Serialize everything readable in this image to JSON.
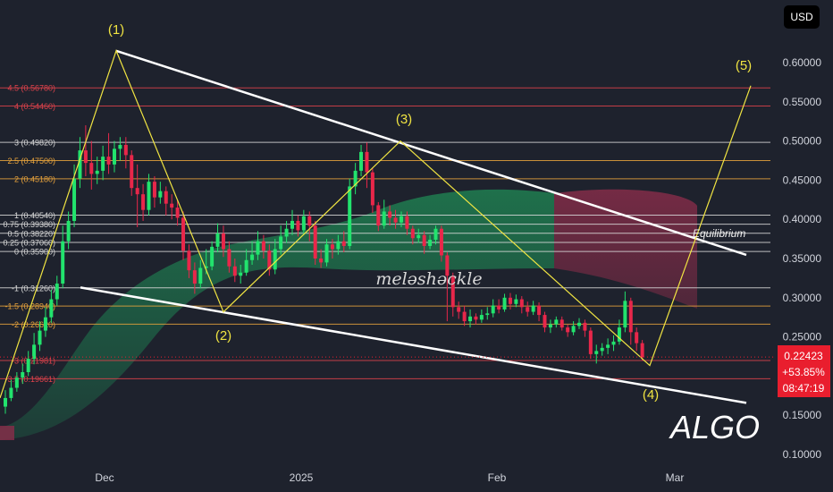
{
  "currency_button": "USD",
  "symbol": "ALGO",
  "watermark": "meləshəckle",
  "chart_data": {
    "type": "candlestick",
    "title": "",
    "price_axis": {
      "min": 0.1,
      "max": 0.64,
      "ticks": [
        "0.60000",
        "0.55000",
        "0.50000",
        "0.45000",
        "0.40000",
        "0.35000",
        "0.30000",
        "0.25000",
        "0.20000",
        "0.15000",
        "0.10000"
      ],
      "tick_values": [
        0.6,
        0.55,
        0.5,
        0.45,
        0.4,
        0.35,
        0.3,
        0.25,
        0.2,
        0.15,
        0.1
      ]
    },
    "time_axis": {
      "labels": [
        "Dec",
        "2025",
        "Feb",
        "Mar"
      ]
    },
    "last_price": {
      "price": "0.22423",
      "change": "+53.85%",
      "countdown": "08:47:19",
      "value": 0.22423
    },
    "fib_levels": [
      {
        "label": "4.5 (0.56780)",
        "value": 0.5678,
        "color": "#e0424b"
      },
      {
        "label": "4 (0.54460)",
        "value": 0.5446,
        "color": "#e0424b"
      },
      {
        "label": "3 (0.49820)",
        "value": 0.4982,
        "color": "#d9d9d9"
      },
      {
        "label": "2.5 (0.47500)",
        "value": 0.475,
        "color": "#e8a33c"
      },
      {
        "label": "2 (0.45180)",
        "value": 0.4518,
        "color": "#e8a33c"
      },
      {
        "label": "1 (0.40540)",
        "value": 0.4054,
        "color": "#d9d9d9"
      },
      {
        "label": "0.75 (0.39380)",
        "value": 0.3938,
        "color": "#d9d9d9"
      },
      {
        "label": "0.5 (0.38220)",
        "value": 0.3822,
        "color": "#d9d9d9"
      },
      {
        "label": "0.25 (0.37060)",
        "value": 0.3706,
        "color": "#d9d9d9"
      },
      {
        "label": "0 (0.35900)",
        "value": 0.359,
        "color": "#d9d9d9"
      },
      {
        "label": "-1 (0.31260)",
        "value": 0.3126,
        "color": "#d9d9d9"
      },
      {
        "label": "-1.5 (0.28940)",
        "value": 0.2894,
        "color": "#e8a33c"
      },
      {
        "label": "-2 (0.26620)",
        "value": 0.2662,
        "color": "#e8a33c"
      },
      {
        "label": "-3 (0.21981)",
        "value": 0.2198,
        "color": "#e0424b"
      },
      {
        "label": "-3.5 (0.19661)",
        "value": 0.1966,
        "color": "#e0424b"
      }
    ],
    "waves": [
      {
        "label": "(1)",
        "value": 0.6151
      },
      {
        "label": "(2)",
        "value": 0.2818
      },
      {
        "label": "(3)",
        "value": 0.4999
      },
      {
        "label": "(4)",
        "value": 0.2135
      },
      {
        "label": "(5)",
        "value": 0.5705
      }
    ],
    "equilibrium_label": "Equilibrium",
    "candles": [
      [
        0.161,
        0.172,
        0.182,
        0.152
      ],
      [
        0.172,
        0.185,
        0.195,
        0.168
      ],
      [
        0.185,
        0.198,
        0.205,
        0.18
      ],
      [
        0.198,
        0.205,
        0.216,
        0.19
      ],
      [
        0.205,
        0.222,
        0.232,
        0.2
      ],
      [
        0.222,
        0.24,
        0.255,
        0.215
      ],
      [
        0.24,
        0.258,
        0.27,
        0.232
      ],
      [
        0.258,
        0.275,
        0.288,
        0.25
      ],
      [
        0.275,
        0.298,
        0.31,
        0.268
      ],
      [
        0.298,
        0.318,
        0.328,
        0.29
      ],
      [
        0.318,
        0.372,
        0.392,
        0.312
      ],
      [
        0.372,
        0.398,
        0.41,
        0.362
      ],
      [
        0.398,
        0.452,
        0.47,
        0.39
      ],
      [
        0.452,
        0.488,
        0.505,
        0.44
      ],
      [
        0.488,
        0.472,
        0.52,
        0.455
      ],
      [
        0.472,
        0.458,
        0.5,
        0.438
      ],
      [
        0.458,
        0.462,
        0.48,
        0.445
      ],
      [
        0.462,
        0.48,
        0.494,
        0.45
      ],
      [
        0.48,
        0.47,
        0.51,
        0.458
      ],
      [
        0.47,
        0.49,
        0.5,
        0.46
      ],
      [
        0.49,
        0.495,
        0.505,
        0.475
      ],
      [
        0.495,
        0.482,
        0.505,
        0.465
      ],
      [
        0.482,
        0.44,
        0.488,
        0.43
      ],
      [
        0.44,
        0.432,
        0.47,
        0.39
      ],
      [
        0.432,
        0.412,
        0.445,
        0.398
      ],
      [
        0.412,
        0.448,
        0.458,
        0.405
      ],
      [
        0.448,
        0.428,
        0.455,
        0.415
      ],
      [
        0.428,
        0.436,
        0.448,
        0.42
      ],
      [
        0.436,
        0.42,
        0.442,
        0.405
      ],
      [
        0.42,
        0.415,
        0.432,
        0.4
      ],
      [
        0.415,
        0.402,
        0.425,
        0.392
      ],
      [
        0.402,
        0.36,
        0.41,
        0.348
      ],
      [
        0.36,
        0.335,
        0.368,
        0.325
      ],
      [
        0.335,
        0.318,
        0.345,
        0.305
      ],
      [
        0.318,
        0.338,
        0.348,
        0.312
      ],
      [
        0.338,
        0.34,
        0.362,
        0.33
      ],
      [
        0.34,
        0.365,
        0.372,
        0.335
      ],
      [
        0.365,
        0.382,
        0.395,
        0.358
      ],
      [
        0.382,
        0.362,
        0.392,
        0.352
      ],
      [
        0.362,
        0.34,
        0.372,
        0.332
      ],
      [
        0.34,
        0.328,
        0.35,
        0.32
      ],
      [
        0.328,
        0.332,
        0.342,
        0.318
      ],
      [
        0.332,
        0.348,
        0.362,
        0.328
      ],
      [
        0.348,
        0.355,
        0.372,
        0.342
      ],
      [
        0.355,
        0.372,
        0.385,
        0.348
      ],
      [
        0.372,
        0.36,
        0.38,
        0.35
      ],
      [
        0.36,
        0.336,
        0.368,
        0.328
      ],
      [
        0.336,
        0.362,
        0.375,
        0.33
      ],
      [
        0.362,
        0.378,
        0.392,
        0.355
      ],
      [
        0.378,
        0.388,
        0.398,
        0.37
      ],
      [
        0.388,
        0.398,
        0.412,
        0.38
      ],
      [
        0.398,
        0.386,
        0.405,
        0.378
      ],
      [
        0.386,
        0.404,
        0.412,
        0.38
      ],
      [
        0.404,
        0.392,
        0.41,
        0.372
      ],
      [
        0.392,
        0.35,
        0.398,
        0.342
      ],
      [
        0.35,
        0.345,
        0.362,
        0.338
      ],
      [
        0.345,
        0.368,
        0.375,
        0.34
      ],
      [
        0.368,
        0.362,
        0.375,
        0.35
      ],
      [
        0.362,
        0.372,
        0.38,
        0.355
      ],
      [
        0.372,
        0.366,
        0.385,
        0.358
      ],
      [
        0.366,
        0.442,
        0.452,
        0.362
      ],
      [
        0.442,
        0.462,
        0.472,
        0.432
      ],
      [
        0.462,
        0.486,
        0.495,
        0.455
      ],
      [
        0.486,
        0.46,
        0.498,
        0.44
      ],
      [
        0.46,
        0.418,
        0.465,
        0.408
      ],
      [
        0.418,
        0.392,
        0.422,
        0.385
      ],
      [
        0.392,
        0.41,
        0.425,
        0.388
      ],
      [
        0.41,
        0.402,
        0.418,
        0.392
      ],
      [
        0.402,
        0.396,
        0.412,
        0.388
      ],
      [
        0.396,
        0.404,
        0.41,
        0.39
      ],
      [
        0.404,
        0.388,
        0.41,
        0.38
      ],
      [
        0.388,
        0.376,
        0.392,
        0.368
      ],
      [
        0.376,
        0.38,
        0.388,
        0.37
      ],
      [
        0.38,
        0.366,
        0.385,
        0.356
      ],
      [
        0.366,
        0.374,
        0.38,
        0.362
      ],
      [
        0.374,
        0.388,
        0.392,
        0.368
      ],
      [
        0.388,
        0.354,
        0.392,
        0.346
      ],
      [
        0.354,
        0.328,
        0.358,
        0.27
      ],
      [
        0.328,
        0.288,
        0.332,
        0.276
      ],
      [
        0.288,
        0.282,
        0.295,
        0.273
      ],
      [
        0.282,
        0.27,
        0.29,
        0.264
      ],
      [
        0.27,
        0.276,
        0.285,
        0.262
      ],
      [
        0.276,
        0.272,
        0.28,
        0.266
      ],
      [
        0.272,
        0.278,
        0.285,
        0.268
      ],
      [
        0.278,
        0.28,
        0.288,
        0.272
      ],
      [
        0.28,
        0.29,
        0.298,
        0.275
      ],
      [
        0.29,
        0.285,
        0.298,
        0.28
      ],
      [
        0.285,
        0.3,
        0.305,
        0.282
      ],
      [
        0.3,
        0.292,
        0.306,
        0.285
      ],
      [
        0.292,
        0.298,
        0.304,
        0.288
      ],
      [
        0.298,
        0.288,
        0.302,
        0.28
      ],
      [
        0.288,
        0.282,
        0.295,
        0.276
      ],
      [
        0.282,
        0.29,
        0.296,
        0.278
      ],
      [
        0.29,
        0.278,
        0.294,
        0.27
      ],
      [
        0.278,
        0.262,
        0.282,
        0.256
      ],
      [
        0.262,
        0.266,
        0.272,
        0.255
      ],
      [
        0.266,
        0.272,
        0.276,
        0.262
      ],
      [
        0.272,
        0.262,
        0.276,
        0.258
      ],
      [
        0.262,
        0.256,
        0.266,
        0.25
      ],
      [
        0.256,
        0.264,
        0.27,
        0.252
      ],
      [
        0.264,
        0.268,
        0.274,
        0.26
      ],
      [
        0.268,
        0.258,
        0.272,
        0.25
      ],
      [
        0.258,
        0.228,
        0.262,
        0.222
      ],
      [
        0.228,
        0.232,
        0.24,
        0.216
      ],
      [
        0.232,
        0.236,
        0.242,
        0.226
      ],
      [
        0.236,
        0.24,
        0.248,
        0.228
      ],
      [
        0.24,
        0.244,
        0.252,
        0.232
      ],
      [
        0.244,
        0.262,
        0.272,
        0.24
      ],
      [
        0.262,
        0.296,
        0.308,
        0.256
      ],
      [
        0.296,
        0.256,
        0.3,
        0.24
      ],
      [
        0.256,
        0.242,
        0.262,
        0.232
      ],
      [
        0.242,
        0.224,
        0.246,
        0.22
      ]
    ]
  }
}
